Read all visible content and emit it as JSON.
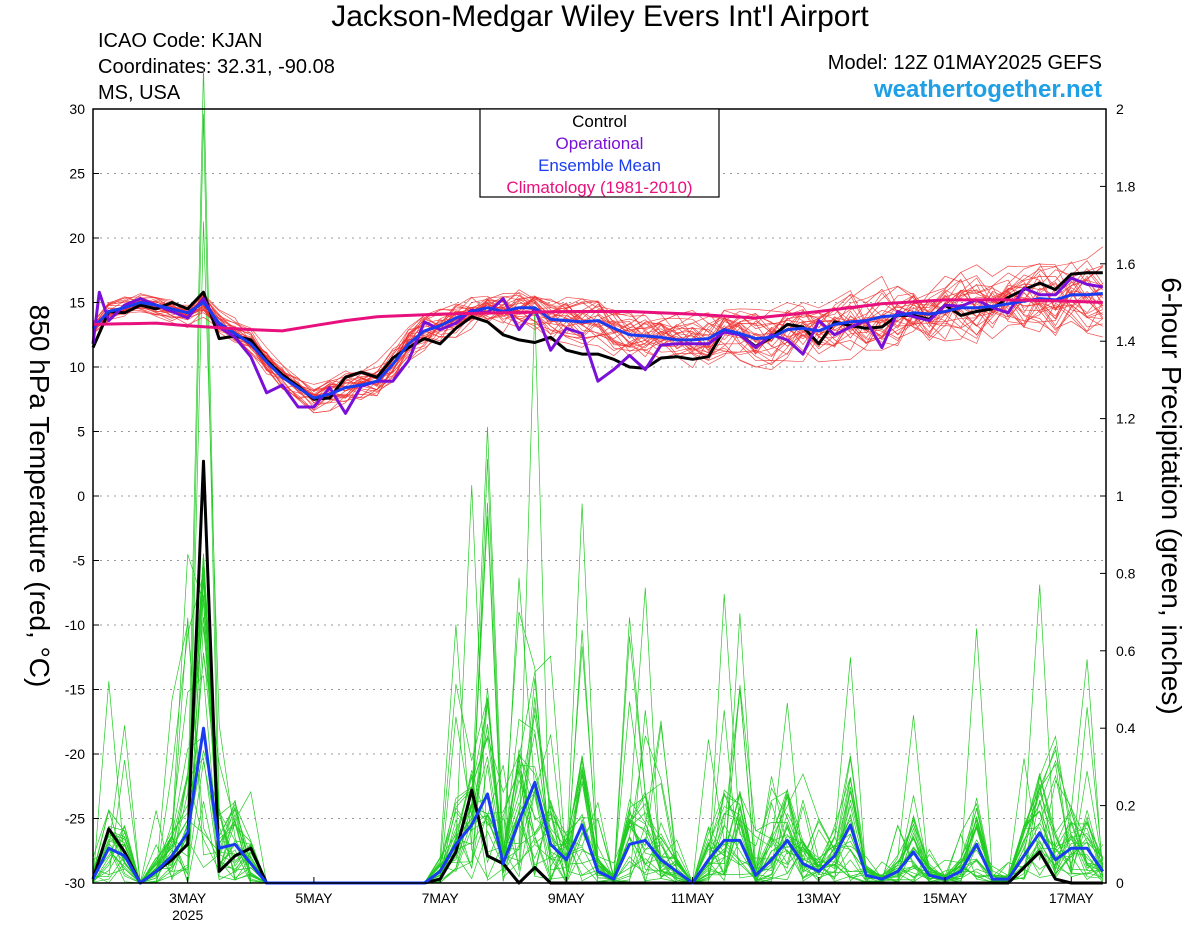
{
  "title": "Jackson-Medgar Wiley Evers Int'l Airport",
  "station": {
    "icao": "ICAO Code: KJAN",
    "coords": "Coordinates: 32.31, -90.08",
    "region": "MS, USA"
  },
  "model": "Model: 12Z 01MAY2025 GEFS",
  "brand": "weathertogether.net",
  "colors": {
    "member_temp": "#f03030",
    "member_precip": "#22cc22",
    "control": "#000000",
    "operational": "#7a10d8",
    "mean": "#1a3cf0",
    "climatology": "#e8107c",
    "brand": "#1e9fe6"
  },
  "chart_data": {
    "type": "line",
    "xlabel": "",
    "x_ticks": [
      "3MAY",
      "5MAY",
      "7MAY",
      "9MAY",
      "11MAY",
      "13MAY",
      "15MAY",
      "17MAY"
    ],
    "x_tick_sub": "2025",
    "x_range_days": [
      1.5,
      17.55
    ],
    "y_left": {
      "label": "850 hPa Temperature (red, °C)",
      "ylim": [
        -30,
        30
      ],
      "ticks": [
        30,
        25,
        20,
        15,
        10,
        5,
        0,
        -5,
        -10,
        -15,
        -20,
        -25,
        -30
      ]
    },
    "y_right": {
      "label": "6-hour Precipitation (green, inches)",
      "ylim": [
        0,
        2
      ],
      "ticks": [
        2,
        1.8,
        1.6,
        1.4,
        1.2,
        1,
        0.8,
        0.6,
        0.4,
        0.2,
        0
      ]
    },
    "grid": true,
    "legend_position": "top-center",
    "legend": [
      "Control",
      "Operational",
      "Ensemble Mean",
      "Climatology (1981-2010)"
    ],
    "series": [
      {
        "name": "Control",
        "axis": "left",
        "x": [
          1.5,
          1.75,
          2,
          2.25,
          2.5,
          2.75,
          3,
          3.25,
          3.5,
          3.75,
          4,
          4.25,
          4.5,
          4.75,
          5,
          5.25,
          5.5,
          5.75,
          6,
          6.25,
          6.5,
          6.75,
          7,
          7.25,
          7.5,
          7.75,
          8,
          8.25,
          8.5,
          8.75,
          9,
          9.25,
          9.5,
          9.75,
          10,
          10.25,
          10.5,
          10.75,
          11,
          11.25,
          11.5,
          11.75,
          12,
          12.25,
          12.5,
          12.75,
          13,
          13.25,
          13.5,
          13.75,
          14,
          14.25,
          14.5,
          14.75,
          15,
          15.25,
          15.5,
          15.75,
          16,
          16.25,
          16.5,
          16.75,
          17,
          17.25,
          17.5
        ],
        "values": [
          11.5,
          14.3,
          14.2,
          14.8,
          14.5,
          15,
          14.5,
          15.8,
          12.2,
          12.4,
          12.1,
          10.5,
          9.4,
          8.5,
          7.5,
          7.6,
          9.2,
          9.6,
          9.2,
          10.7,
          11.5,
          12.2,
          11.8,
          13,
          13.9,
          13.5,
          12.5,
          12.1,
          11.9,
          12.3,
          11.3,
          11,
          11,
          10.6,
          10,
          9.9,
          10.7,
          10.8,
          10.6,
          10.8,
          12.9,
          12.5,
          11.6,
          12.3,
          13.3,
          13.1,
          11.8,
          13.5,
          13.2,
          13.0,
          13.1,
          14.0,
          14.0,
          13.7,
          14.8,
          14.0,
          14.3,
          14.5,
          15.4,
          16.0,
          16.5,
          16.0,
          17.2,
          17.3,
          17.3
        ]
      },
      {
        "name": "Operational",
        "axis": "left",
        "x": [
          1.5,
          1.6,
          1.75,
          2,
          2.25,
          2.5,
          2.75,
          3,
          3.25,
          3.5,
          3.75,
          4,
          4.25,
          4.5,
          4.75,
          5,
          5.25,
          5.5,
          5.75,
          6,
          6.25,
          6.5,
          6.75,
          7,
          7.25,
          7.5,
          7.75,
          8,
          8.25,
          8.5,
          8.75,
          9,
          9.25,
          9.5,
          9.75,
          10,
          10.25,
          10.5,
          10.75,
          11,
          11.25,
          11.5,
          11.75,
          12,
          12.25,
          12.5,
          12.75,
          13,
          13.25,
          13.5,
          13.75,
          14,
          14.25,
          14.5,
          14.75,
          15,
          15.25,
          15.5,
          15.75,
          16,
          16.25,
          16.5,
          16.75,
          17,
          17.25,
          17.5
        ],
        "values": [
          11.8,
          15.8,
          13.6,
          14.8,
          15.3,
          14.8,
          14.3,
          13.8,
          15.3,
          13.1,
          12.3,
          10.8,
          8.0,
          8.6,
          6.9,
          6.9,
          8.4,
          6.4,
          8.5,
          8.9,
          8.9,
          10.5,
          13.5,
          12.9,
          13.4,
          14.4,
          14.2,
          15.3,
          12.9,
          14.5,
          11.3,
          13.0,
          12.6,
          8.9,
          9.8,
          10.9,
          9.8,
          11.7,
          11.8,
          11.8,
          11.8,
          12.7,
          12.5,
          11.5,
          12.5,
          12.1,
          11.0,
          13.6,
          12.5,
          13.1,
          13.6,
          11.5,
          14.3,
          13.9,
          13.6,
          14.8,
          14.7,
          15.2,
          14.6,
          14.2,
          16.1,
          15.6,
          15.6,
          16.9,
          16.4,
          16.2
        ]
      },
      {
        "name": "Ensemble Mean",
        "axis": "left",
        "x": [
          1.5,
          1.75,
          2,
          2.25,
          2.5,
          2.75,
          3,
          3.25,
          3.5,
          3.75,
          4,
          4.25,
          4.5,
          4.75,
          5,
          5.25,
          5.5,
          5.75,
          6,
          6.25,
          6.5,
          6.75,
          7,
          7.25,
          7.5,
          7.75,
          8,
          8.25,
          8.5,
          8.75,
          9,
          9.25,
          9.5,
          9.75,
          10,
          10.25,
          10.5,
          10.75,
          11,
          11.25,
          11.5,
          11.75,
          12,
          12.25,
          12.5,
          12.75,
          13,
          13.25,
          13.5,
          13.75,
          14,
          14.25,
          14.5,
          14.75,
          15,
          15.25,
          15.5,
          15.75,
          16,
          16.25,
          16.5,
          16.75,
          17,
          17.25,
          17.5
        ],
        "values": [
          13.0,
          14.3,
          14.6,
          15.0,
          14.8,
          14.5,
          14.2,
          15.0,
          13.4,
          12.6,
          11.8,
          10.4,
          9.2,
          8.4,
          7.6,
          7.9,
          8.4,
          8.6,
          8.9,
          10.2,
          11.8,
          12.8,
          13.2,
          13.8,
          14.3,
          14.6,
          14.3,
          14.6,
          14.6,
          13.7,
          13.6,
          13.5,
          13.6,
          13.0,
          12.5,
          12.4,
          12.3,
          12.1,
          12.1,
          12.2,
          12.9,
          12.6,
          12.2,
          12.3,
          12.9,
          13.0,
          12.8,
          13.3,
          13.5,
          13.6,
          13.9,
          14.0,
          14.2,
          14.1,
          14.3,
          14.6,
          14.6,
          14.7,
          14.9,
          15.1,
          15.3,
          15.2,
          15.6,
          15.6,
          15.7
        ]
      },
      {
        "name": "Climatology (1981-2010)",
        "axis": "left",
        "x": [
          1.5,
          2.5,
          3,
          4,
          4.5,
          5,
          5.5,
          6,
          7,
          8,
          9,
          10,
          11,
          12,
          13,
          14,
          15,
          16,
          17,
          17.5
        ],
        "values": [
          13.3,
          13.4,
          13.2,
          12.9,
          12.8,
          13.2,
          13.6,
          13.9,
          14.1,
          14.2,
          14.3,
          14.3,
          14.1,
          13.8,
          14.3,
          14.9,
          15.2,
          15.2,
          15.1,
          15.0
        ]
      },
      {
        "name": "Control",
        "axis": "right",
        "x": [
          1.5,
          1.75,
          2,
          2.25,
          2.5,
          2.75,
          3,
          3.25,
          3.5,
          3.75,
          4,
          4.25,
          4.5,
          4.75,
          5,
          5.25,
          5.5,
          5.75,
          6,
          6.25,
          6.5,
          6.75,
          7,
          7.25,
          7.5,
          7.75,
          8,
          8.25,
          8.5,
          8.75,
          9,
          9.25,
          9.5,
          9.75,
          10,
          10.25,
          10.5,
          10.75,
          11,
          11.25,
          11.5,
          11.75,
          12,
          12.25,
          12.5,
          12.75,
          13,
          13.25,
          13.5,
          13.75,
          14,
          14.25,
          14.5,
          14.75,
          15,
          15.25,
          15.5,
          15.75,
          16,
          16.25,
          16.5,
          16.75,
          17,
          17.25,
          17.5
        ],
        "values": [
          0.01,
          0.14,
          0.08,
          0.0,
          0.03,
          0.06,
          0.1,
          1.09,
          0.03,
          0.07,
          0.09,
          0.0,
          0.0,
          0.0,
          0.0,
          0.0,
          0.0,
          0.0,
          0.0,
          0.0,
          0.0,
          0.0,
          0.01,
          0.08,
          0.24,
          0.07,
          0.05,
          0.0,
          0.04,
          0.0,
          0.0,
          0.0,
          0.0,
          0.0,
          0.0,
          0.0,
          0.0,
          0.0,
          0.0,
          0.0,
          0.0,
          0.0,
          0.0,
          0.0,
          0.0,
          0.0,
          0.0,
          0.0,
          0.0,
          0.0,
          0.0,
          0.0,
          0.0,
          0.0,
          0.0,
          0.0,
          0.0,
          0.0,
          0.0,
          0.04,
          0.08,
          0.01,
          0.0,
          0.0,
          0.0
        ]
      },
      {
        "name": "Ensemble Mean",
        "axis": "right",
        "x": [
          1.5,
          1.75,
          2,
          2.25,
          2.5,
          2.75,
          3,
          3.25,
          3.5,
          3.75,
          4,
          4.25,
          4.5,
          4.75,
          5,
          5.25,
          5.5,
          5.75,
          6,
          6.25,
          6.5,
          6.75,
          7,
          7.25,
          7.5,
          7.75,
          8,
          8.25,
          8.5,
          8.75,
          9,
          9.25,
          9.5,
          9.75,
          10,
          10.25,
          10.5,
          10.75,
          11,
          11.25,
          11.5,
          11.75,
          12,
          12.25,
          12.5,
          12.75,
          13,
          13.25,
          13.5,
          13.75,
          14,
          14.25,
          14.5,
          14.75,
          15,
          15.25,
          15.5,
          15.75,
          16,
          16.25,
          16.5,
          16.75,
          17,
          17.25,
          17.5
        ],
        "values": [
          0.01,
          0.09,
          0.07,
          0.0,
          0.03,
          0.07,
          0.13,
          0.4,
          0.09,
          0.1,
          0.05,
          0.0,
          0.0,
          0.0,
          0.0,
          0.0,
          0.0,
          0.0,
          0.0,
          0.0,
          0.0,
          0.0,
          0.03,
          0.1,
          0.15,
          0.23,
          0.05,
          0.16,
          0.26,
          0.1,
          0.06,
          0.15,
          0.03,
          0.01,
          0.1,
          0.11,
          0.06,
          0.03,
          0.0,
          0.06,
          0.11,
          0.11,
          0.02,
          0.06,
          0.11,
          0.05,
          0.03,
          0.07,
          0.15,
          0.02,
          0.01,
          0.03,
          0.08,
          0.02,
          0.01,
          0.03,
          0.1,
          0.01,
          0.01,
          0.07,
          0.13,
          0.06,
          0.09,
          0.09,
          0.03
        ]
      }
    ],
    "ensemble_members_temp": 30,
    "ensemble_members_precip": 30
  }
}
